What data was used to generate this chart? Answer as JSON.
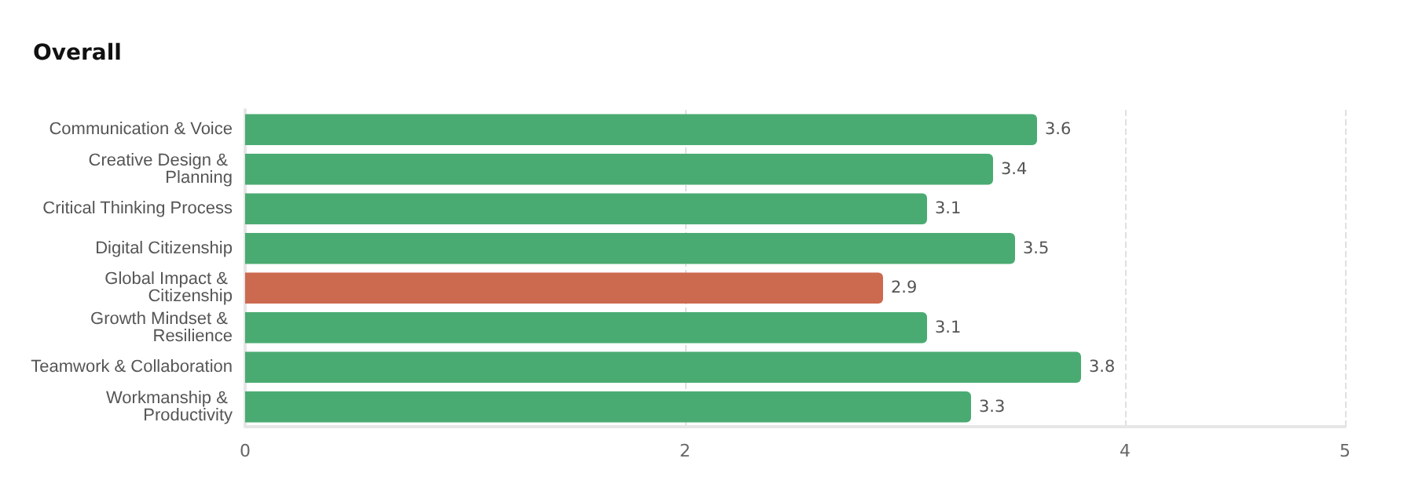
{
  "chart_data": {
    "type": "bar",
    "orientation": "horizontal",
    "title": "Overall",
    "categories": [
      "Communication & Voice",
      "Creative Design & Planning",
      "Critical Thinking Process",
      "Digital Citizenship",
      "Global Impact & Citizenship",
      "Growth Mindset & Resilience",
      "Teamwork & Collaboration",
      "Workmanship & Productivity"
    ],
    "values": [
      3.6,
      3.4,
      3.1,
      3.5,
      2.9,
      3.1,
      3.8,
      3.3
    ],
    "colors": [
      "#4aab72",
      "#4aab72",
      "#4aab72",
      "#4aab72",
      "#cc6a4f",
      "#4aab72",
      "#4aab72",
      "#4aab72"
    ],
    "xlim": [
      0,
      5
    ],
    "xticks": [
      0,
      2,
      4,
      5
    ],
    "grid": "x",
    "data_labels": true
  }
}
